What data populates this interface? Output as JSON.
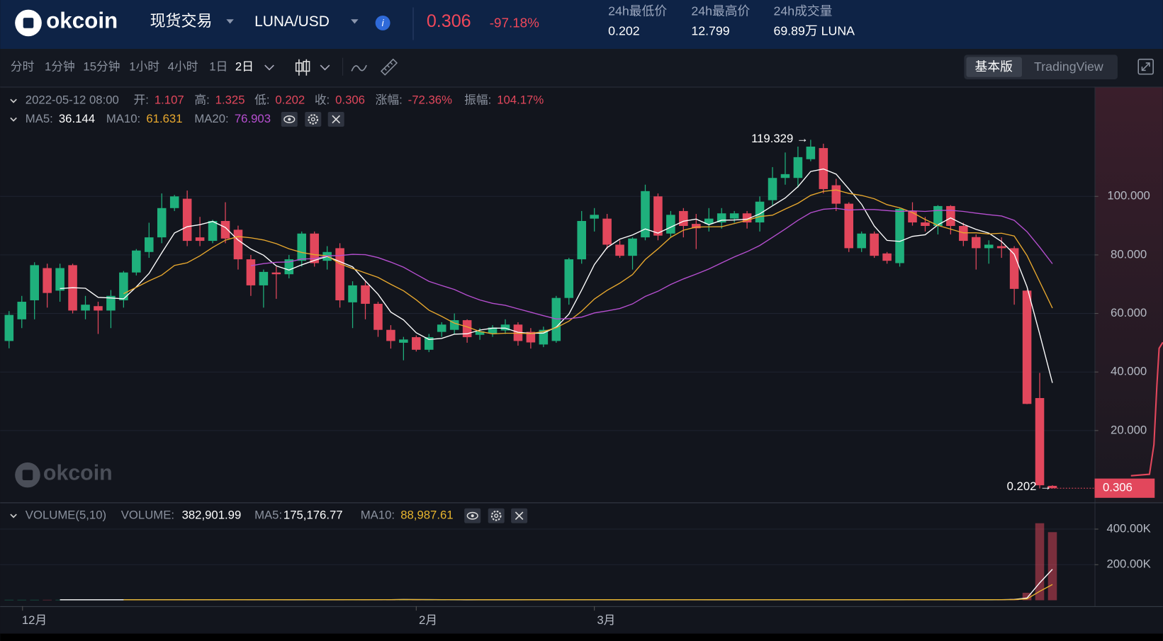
{
  "header": {
    "logo": "okcoin",
    "market": "现货交易",
    "pair": "LUNA/USD",
    "price": "0.306",
    "change": "-97.18%",
    "stats": [
      {
        "label": "24h最低价",
        "value": "0.202"
      },
      {
        "label": "24h最高价",
        "value": "12.799"
      },
      {
        "label": "24h成交量",
        "value": "69.89万 LUNA"
      }
    ]
  },
  "toolbar": {
    "intervals": [
      "分时",
      "1分钟",
      "15分钟",
      "1小时",
      "4小时",
      "1日",
      "2日"
    ],
    "active": "2日",
    "views": [
      "基本版",
      "TradingView"
    ]
  },
  "watermark": "okcoin",
  "chart_data": [
    {
      "type": "candlestick",
      "up_color": "#1fb07c",
      "down_color": "#e2475c",
      "info": {
        "date": "2022-05-12 08:00",
        "items": [
          {
            "label": "开:",
            "value": "1.107"
          },
          {
            "label": "高:",
            "value": "1.325"
          },
          {
            "label": "低:",
            "value": "0.202"
          },
          {
            "label": "收:",
            "value": "0.306"
          },
          {
            "label": "涨幅:",
            "value": "-72.36%"
          },
          {
            "label": "振幅:",
            "value": "104.17%"
          }
        ]
      },
      "ma_legend": [
        {
          "label": "MA5:",
          "value": "36.144",
          "period": 5,
          "color": "#ffffff"
        },
        {
          "label": "MA10:",
          "value": "61.631",
          "period": 10,
          "color": "#e8a82e"
        },
        {
          "label": "MA20:",
          "value": "76.903",
          "period": 20,
          "color": "#b64fd0"
        }
      ],
      "annotations": [
        {
          "text": "119.329 →"
        },
        {
          "text": "0.202 →"
        }
      ],
      "last_label": "0.306",
      "categories": [
        null,
        "12月",
        null,
        null,
        null,
        null,
        null,
        null,
        null,
        null,
        null,
        null,
        null,
        null,
        null,
        null,
        null,
        null,
        null,
        null,
        null,
        null,
        null,
        null,
        null,
        null,
        null,
        null,
        null,
        null,
        null,
        null,
        "2月",
        null,
        null,
        null,
        null,
        null,
        null,
        null,
        null,
        null,
        null,
        null,
        null,
        null,
        "3月",
        null,
        null,
        null,
        null,
        null,
        null,
        null,
        null,
        null,
        null,
        null,
        null,
        null,
        null,
        null,
        null,
        null,
        null,
        null,
        null,
        null,
        null,
        null,
        null,
        null,
        null,
        null,
        null,
        null,
        null,
        null,
        null,
        null,
        null,
        null,
        null
      ],
      "open": [
        50.6,
        58,
        64.5,
        75.5,
        67.8,
        76.5,
        61,
        62.5,
        61,
        64.5,
        74,
        81,
        86,
        96,
        99.2,
        86,
        84.8,
        91.6,
        88.6,
        78.5,
        69.6,
        74,
        73.4,
        78,
        87.3,
        78,
        82.3,
        63.8,
        69.6,
        63.3,
        54.4,
        50,
        51.9,
        47.6,
        53.7,
        54.4,
        57.7,
        52.7,
        53.2,
        54.2,
        56.2,
        53.7,
        49.4,
        50.6,
        65.3,
        78.5,
        92.4,
        92.4,
        83.5,
        79.7,
        86,
        100,
        87.3,
        95,
        90.6,
        90.6,
        91.1,
        92.4,
        94.2,
        91.1,
        98.7,
        106.3,
        106.3,
        112.7,
        116.5,
        103.8,
        97.5,
        82.3,
        87.3,
        80.5,
        77.2,
        95,
        91.1,
        89.9,
        96.7,
        89.9,
        86.1,
        82.3,
        83,
        82.3,
        67.8,
        31.1,
        1.107
      ],
      "high": [
        60.8,
        66,
        77.5,
        77,
        77,
        77,
        66,
        64,
        68,
        74.5,
        82,
        91,
        101,
        100.5,
        102,
        93,
        92,
        98,
        90,
        80,
        75,
        76,
        80,
        88,
        88,
        83,
        84,
        71,
        71,
        64,
        56,
        52,
        52.5,
        53,
        57,
        60,
        58,
        55,
        56,
        58,
        57,
        55,
        55.5,
        66,
        79,
        95,
        96,
        94,
        85,
        86,
        104,
        101,
        95,
        96,
        94,
        96,
        96,
        95,
        95,
        100,
        110,
        115,
        117,
        119.329,
        118,
        106,
        98,
        88,
        88,
        81,
        96,
        98,
        93,
        97,
        97,
        91,
        87,
        85,
        86,
        83,
        68,
        39.7,
        1.325
      ],
      "low": [
        48.1,
        55,
        58,
        62,
        64,
        60,
        58,
        53,
        55,
        62,
        73,
        79,
        84,
        95,
        83,
        83,
        84,
        84,
        75,
        66,
        62,
        65,
        72,
        76,
        76,
        75,
        62,
        55,
        58,
        52,
        48,
        44,
        47,
        46.8,
        52,
        53,
        50,
        51,
        52,
        53,
        49,
        48,
        48.5,
        50,
        63,
        77,
        88,
        82,
        79,
        75,
        85,
        85,
        86,
        86,
        82,
        88,
        89,
        91,
        89,
        88,
        97,
        104,
        103,
        112,
        101,
        95,
        81,
        81,
        79,
        77,
        76,
        90,
        88,
        87,
        87,
        83,
        75,
        77,
        79,
        63,
        29,
        0.202,
        0.202
      ],
      "close": [
        59.5,
        64,
        76.5,
        67,
        75.5,
        61,
        63,
        61,
        66,
        74,
        81.5,
        86,
        96,
        100,
        84.8,
        84.8,
        91.6,
        85.6,
        78.5,
        69.6,
        74.2,
        73.4,
        78.5,
        87.3,
        77.2,
        81,
        64.5,
        69.6,
        63.3,
        54.4,
        50.6,
        51.1,
        47.6,
        51.9,
        56.2,
        57.7,
        51.9,
        53.9,
        55.2,
        56.2,
        50.6,
        50.1,
        54.4,
        65.3,
        78.5,
        91.6,
        93.7,
        83.5,
        79.7,
        85.6,
        101.8,
        86.6,
        93.7,
        89.9,
        89.1,
        92.4,
        94.2,
        94.2,
        91.1,
        98.2,
        106.3,
        107.6,
        113.4,
        117,
        102.5,
        97.5,
        82.3,
        87.3,
        79.7,
        78,
        95.7,
        91.1,
        89.9,
        96.7,
        89.9,
        84.8,
        82.3,
        83.5,
        82.3,
        68.4,
        29.1,
        1.3,
        0.306
      ],
      "ylim": [
        -4.56,
        137.22
      ],
      "yticks": [
        {
          "value": 20,
          "label": "20.000"
        },
        {
          "value": 40,
          "label": "40.000"
        },
        {
          "value": 60,
          "label": "60.000"
        },
        {
          "value": 80,
          "label": "80.000"
        },
        {
          "value": 100,
          "label": "100.000"
        }
      ],
      "grid": true
    },
    {
      "type": "bar",
      "title": "VOLUME(5,10)",
      "info": [
        {
          "label": "VOLUME:",
          "value": "382,901.99",
          "color": "#ffffff"
        },
        {
          "label": "MA5:",
          "value": "175,176.77",
          "period": 5,
          "color": "#ffffff"
        },
        {
          "label": "MA10:",
          "value": "88,987.61",
          "period": 10,
          "color": "#e8b52e"
        }
      ],
      "values": [
        2500,
        2500,
        2500,
        2500,
        2500,
        2500,
        2500,
        2500,
        2500,
        2500,
        2500,
        2500,
        2500,
        2500,
        5000,
        2500,
        2500,
        5000,
        2500,
        2500,
        2500,
        2500,
        2500,
        5000,
        2500,
        2500,
        2500,
        5000,
        2500,
        5000,
        2500,
        6000,
        2500,
        2500,
        2500,
        2500,
        2500,
        2500,
        2500,
        2500,
        2500,
        2500,
        2500,
        2500,
        5000,
        2500,
        2500,
        2500,
        2500,
        2500,
        5000,
        2500,
        2500,
        2500,
        2500,
        2500,
        2500,
        2500,
        2500,
        5000,
        2500,
        2500,
        2500,
        2500,
        2500,
        2500,
        2500,
        2500,
        2500,
        2500,
        5000,
        5000,
        2500,
        2500,
        2500,
        2500,
        4000,
        2500,
        5000,
        8000,
        42000,
        433000,
        382901.99
      ],
      "ylim": [
        -33333,
        550000
      ],
      "yticks": [
        {
          "value": 200000,
          "label": "200.00K"
        },
        {
          "value": 400000,
          "label": "400.00K"
        }
      ]
    }
  ]
}
